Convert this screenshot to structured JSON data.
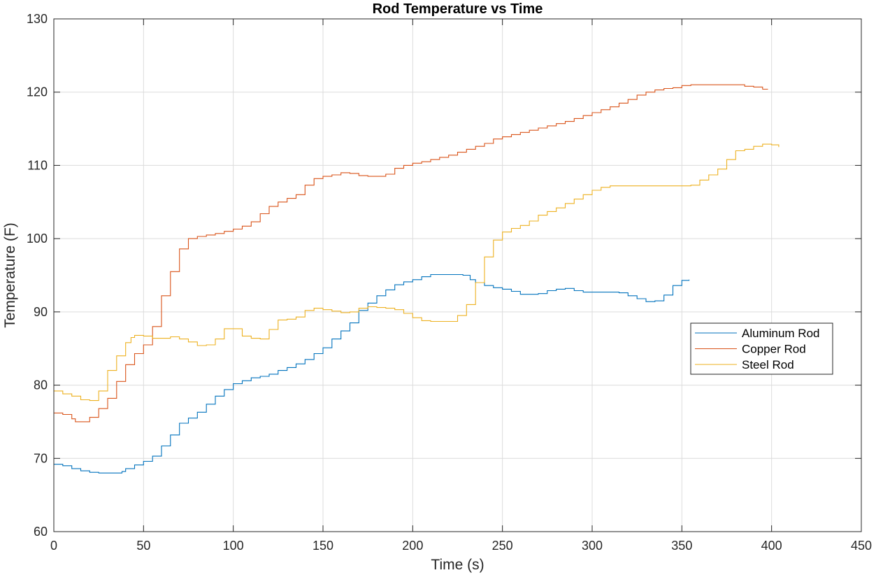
{
  "chart_data": {
    "type": "line",
    "title": "Rod Temperature vs Time",
    "xlabel": "Time (s)",
    "ylabel": "Temperature (F)",
    "xlim": [
      0,
      450
    ],
    "ylim": [
      60,
      130
    ],
    "xticks": [
      0,
      50,
      100,
      150,
      200,
      250,
      300,
      350,
      400,
      450
    ],
    "yticks": [
      60,
      70,
      80,
      90,
      100,
      110,
      120,
      130
    ],
    "grid": true,
    "legend_position": "east",
    "series": [
      {
        "name": "Aluminum Rod",
        "color": "#0072BD",
        "x": [
          0,
          5,
          10,
          15,
          20,
          25,
          30,
          35,
          38,
          40,
          45,
          50,
          55,
          60,
          65,
          70,
          75,
          80,
          85,
          90,
          95,
          100,
          105,
          110,
          115,
          120,
          125,
          130,
          135,
          140,
          145,
          150,
          155,
          160,
          165,
          170,
          175,
          180,
          185,
          190,
          195,
          200,
          205,
          210,
          215,
          220,
          225,
          228,
          232,
          235,
          240,
          245,
          250,
          255,
          260,
          265,
          270,
          275,
          280,
          285,
          290,
          295,
          300,
          305,
          310,
          315,
          320,
          325,
          330,
          335,
          340,
          345,
          350,
          354
        ],
        "y": [
          69.2,
          69.0,
          68.6,
          68.3,
          68.1,
          68.0,
          68.0,
          68.0,
          68.2,
          68.6,
          69.1,
          69.6,
          70.3,
          71.7,
          73.2,
          74.8,
          75.5,
          76.3,
          77.4,
          78.5,
          79.4,
          80.2,
          80.6,
          81.0,
          81.2,
          81.5,
          82.0,
          82.4,
          82.9,
          83.5,
          84.3,
          85.1,
          86.3,
          87.4,
          88.5,
          90.2,
          91.2,
          92.2,
          93.0,
          93.7,
          94.1,
          94.4,
          94.8,
          95.1,
          95.1,
          95.1,
          95.1,
          95.0,
          94.4,
          94.0,
          93.6,
          93.3,
          93.1,
          92.8,
          92.4,
          92.4,
          92.5,
          92.9,
          93.1,
          93.2,
          92.9,
          92.7,
          92.7,
          92.7,
          92.7,
          92.6,
          92.2,
          91.8,
          91.4,
          91.5,
          92.3,
          93.6,
          94.3,
          94.4
        ]
      },
      {
        "name": "Copper Rod",
        "color": "#D95319",
        "x": [
          0,
          5,
          10,
          12,
          15,
          18,
          20,
          25,
          30,
          35,
          40,
          45,
          50,
          55,
          60,
          65,
          70,
          75,
          80,
          85,
          90,
          95,
          100,
          105,
          110,
          115,
          120,
          125,
          130,
          135,
          140,
          145,
          150,
          155,
          160,
          165,
          170,
          175,
          180,
          185,
          190,
          195,
          200,
          205,
          210,
          215,
          220,
          225,
          230,
          235,
          240,
          245,
          250,
          255,
          260,
          265,
          270,
          275,
          280,
          285,
          290,
          295,
          300,
          305,
          310,
          315,
          320,
          325,
          330,
          335,
          340,
          345,
          350,
          355,
          360,
          365,
          370,
          375,
          380,
          385,
          390,
          395,
          398
        ],
        "y": [
          76.2,
          76.0,
          75.4,
          75.0,
          75.0,
          75.0,
          75.6,
          76.8,
          78.2,
          80.5,
          82.8,
          84.3,
          85.5,
          88.0,
          92.2,
          95.5,
          98.6,
          100.0,
          100.3,
          100.5,
          100.7,
          101.0,
          101.3,
          101.7,
          102.3,
          103.4,
          104.4,
          105.0,
          105.5,
          106.0,
          107.3,
          108.2,
          108.5,
          108.7,
          109.0,
          108.9,
          108.6,
          108.5,
          108.5,
          108.8,
          109.6,
          110.0,
          110.3,
          110.5,
          110.8,
          111.1,
          111.4,
          111.8,
          112.2,
          112.6,
          113.0,
          113.6,
          113.9,
          114.2,
          114.5,
          114.8,
          115.1,
          115.4,
          115.7,
          116.0,
          116.4,
          116.8,
          117.2,
          117.6,
          118.0,
          118.5,
          119.0,
          119.6,
          120.0,
          120.3,
          120.5,
          120.6,
          120.9,
          121.0,
          121.0,
          121.0,
          121.0,
          121.0,
          121.0,
          120.8,
          120.7,
          120.4,
          120.4
        ]
      },
      {
        "name": "Steel Rod",
        "color": "#EDB120",
        "x": [
          0,
          5,
          10,
          15,
          20,
          22,
          25,
          30,
          35,
          40,
          43,
          45,
          50,
          55,
          60,
          65,
          70,
          75,
          80,
          85,
          90,
          95,
          100,
          105,
          110,
          115,
          118,
          120,
          125,
          130,
          135,
          140,
          145,
          150,
          155,
          160,
          165,
          170,
          175,
          180,
          185,
          190,
          195,
          200,
          205,
          210,
          215,
          220,
          225,
          230,
          235,
          240,
          245,
          250,
          255,
          260,
          265,
          270,
          275,
          280,
          285,
          290,
          295,
          300,
          305,
          310,
          315,
          320,
          325,
          330,
          335,
          340,
          345,
          350,
          355,
          360,
          365,
          370,
          375,
          380,
          385,
          390,
          395,
          400,
          404
        ],
        "y": [
          79.2,
          78.8,
          78.5,
          78.0,
          77.9,
          77.9,
          79.2,
          82.0,
          84.0,
          85.8,
          86.5,
          86.8,
          86.7,
          86.4,
          86.4,
          86.6,
          86.3,
          85.9,
          85.4,
          85.5,
          86.3,
          87.7,
          87.7,
          86.7,
          86.4,
          86.3,
          86.3,
          87.6,
          88.9,
          89.0,
          89.3,
          90.2,
          90.5,
          90.3,
          90.1,
          89.9,
          90.0,
          90.5,
          90.7,
          90.6,
          90.5,
          90.3,
          89.8,
          89.2,
          88.8,
          88.7,
          88.7,
          88.7,
          89.5,
          91.0,
          94.0,
          97.5,
          99.8,
          100.9,
          101.4,
          101.8,
          102.4,
          103.2,
          103.7,
          104.2,
          104.8,
          105.4,
          106.0,
          106.6,
          107.0,
          107.2,
          107.2,
          107.2,
          107.2,
          107.2,
          107.2,
          107.2,
          107.2,
          107.2,
          107.3,
          108.0,
          108.7,
          109.5,
          110.8,
          112.0,
          112.2,
          112.6,
          112.9,
          112.8,
          112.5
        ]
      }
    ]
  }
}
